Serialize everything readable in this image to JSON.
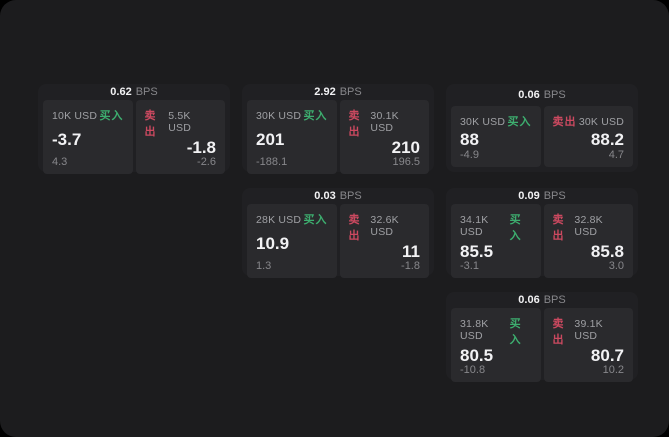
{
  "labels": {
    "bps": "BPS",
    "buy": "买入",
    "sell": "卖出"
  },
  "colors": {
    "page-bg": "#1c1c1e",
    "card-bg": "#202023",
    "panel-bg": "#2a2a2d",
    "buy-green": "#3dae6f",
    "sell-red": "#cc4960",
    "text-bright": "#f2f2f4",
    "text-mid": "#9fa0a4",
    "text-dim": "#87878b"
  },
  "cards": [
    {
      "bps": "0.62",
      "buy": {
        "amount": "10K USD",
        "price": "-3.7",
        "delta": "4.3"
      },
      "sell": {
        "amount": "5.5K USD",
        "price": "-1.8",
        "delta": "-2.6"
      }
    },
    {
      "bps": "2.92",
      "buy": {
        "amount": "30K USD",
        "price": "201",
        "delta": "-188.1"
      },
      "sell": {
        "amount": "30.1K USD",
        "price": "210",
        "delta": "196.5"
      }
    },
    {
      "bps": "0.06",
      "buy": {
        "amount": "30K USD",
        "price": "88",
        "delta": "-4.9"
      },
      "sell": {
        "amount": "30K USD",
        "price": "88.2",
        "delta": "4.7"
      }
    },
    {
      "bps": "0.03",
      "buy": {
        "amount": "28K USD",
        "price": "10.9",
        "delta": "1.3"
      },
      "sell": {
        "amount": "32.6K USD",
        "price": "11",
        "delta": "-1.8"
      }
    },
    {
      "bps": "0.09",
      "buy": {
        "amount": "34.1K USD",
        "price": "85.5",
        "delta": "-3.1"
      },
      "sell": {
        "amount": "32.8K USD",
        "price": "85.8",
        "delta": "3.0"
      }
    },
    {
      "bps": "0.06",
      "buy": {
        "amount": "31.8K USD",
        "price": "80.5",
        "delta": "-10.8"
      },
      "sell": {
        "amount": "39.1K USD",
        "price": "80.7",
        "delta": "10.2"
      }
    }
  ]
}
